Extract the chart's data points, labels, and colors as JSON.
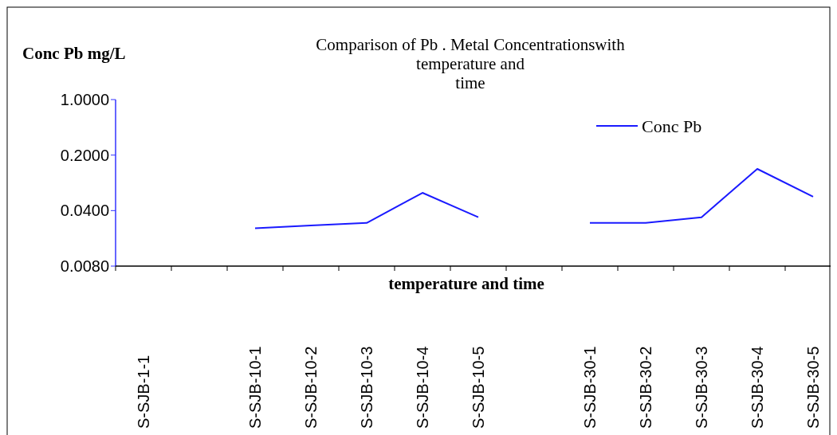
{
  "chart_data": {
    "type": "line",
    "title": "Comparison of Pb . Metal Concentrationswith\ntemperature and\ntime",
    "xlabel": "temperature and time",
    "ylabel": "Conc Pb mg/L",
    "categories": [
      "S-SJB-1-1",
      null,
      "S-SJB-10-1",
      "S-SJB-10-2",
      "S-SJB-10-3",
      "S-SJB-10-4",
      "S-SJB-10-5",
      null,
      "S-SJB-30-1",
      "S-SJB-30-2",
      "S-SJB-30-3",
      "S-SJB-30-4",
      "S-SJB-30-5"
    ],
    "series": [
      {
        "name": "Conc Pb",
        "color": "#1a1aff",
        "values": [
          null,
          null,
          0.024,
          0.026,
          0.028,
          0.067,
          0.033,
          null,
          0.028,
          0.028,
          0.033,
          0.134,
          0.06
        ]
      }
    ],
    "log": true,
    "ylim": [
      0.008,
      1
    ],
    "yticks": [
      {
        "value": 0.008,
        "label": "0.0080"
      },
      {
        "value": 0.04,
        "label": "0.0400"
      },
      {
        "value": 0.2,
        "label": "0.2000"
      },
      {
        "value": 1,
        "label": "1.0000"
      }
    ],
    "grid": false,
    "legend": "top right",
    "line_style": "solid",
    "marker": "none"
  }
}
